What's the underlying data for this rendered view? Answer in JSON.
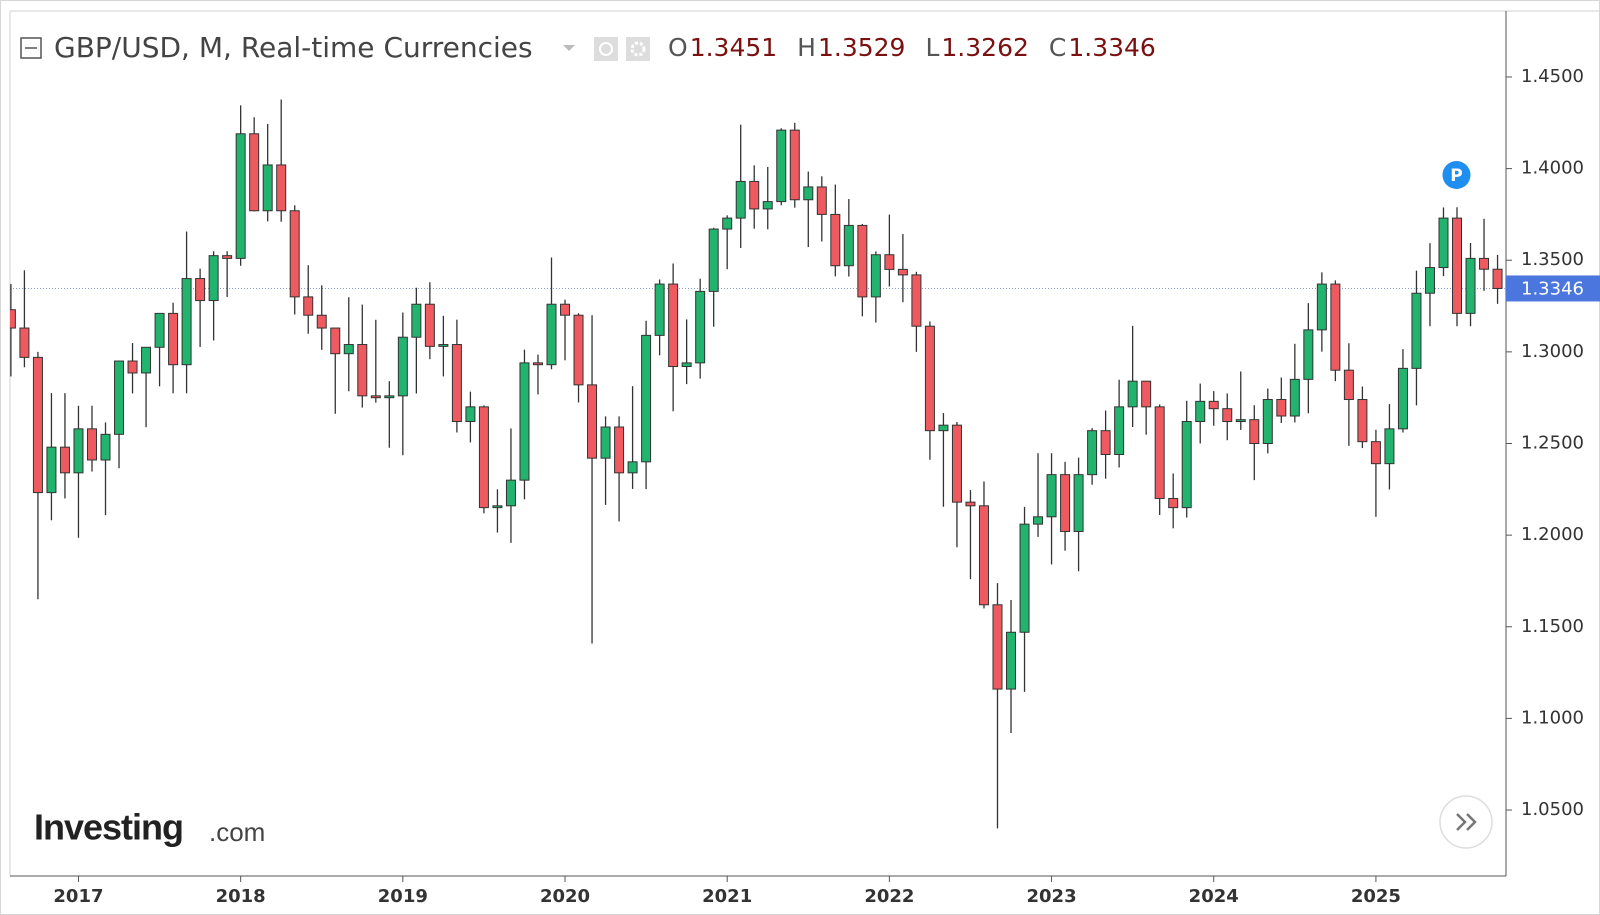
{
  "chart_data": {
    "type": "candlestick",
    "title": "GBP/USD, M, Real-time Currencies",
    "ohlc_letters": [
      "O",
      "H",
      "L",
      "C"
    ],
    "badge": "P",
    "brand": [
      "Investing",
      ".com"
    ],
    "up_color": "#22b46e",
    "down_color": "#ee5a5f",
    "x": [
      "2016-08",
      "2016-09",
      "2016-10",
      "2016-11",
      "2016-12",
      "2017-01",
      "2017-02",
      "2017-03",
      "2017-04",
      "2017-05",
      "2017-06",
      "2017-07",
      "2017-08",
      "2017-09",
      "2017-10",
      "2017-11",
      "2017-12",
      "2018-01",
      "2018-02",
      "2018-03",
      "2018-04",
      "2018-05",
      "2018-06",
      "2018-07",
      "2018-08",
      "2018-09",
      "2018-10",
      "2018-11",
      "2018-12",
      "2019-01",
      "2019-02",
      "2019-03",
      "2019-04",
      "2019-05",
      "2019-06",
      "2019-07",
      "2019-08",
      "2019-09",
      "2019-10",
      "2019-11",
      "2019-12",
      "2020-01",
      "2020-02",
      "2020-03",
      "2020-04",
      "2020-05",
      "2020-06",
      "2020-07",
      "2020-08",
      "2020-09",
      "2020-10",
      "2020-11",
      "2020-12",
      "2021-01",
      "2021-02",
      "2021-03",
      "2021-04",
      "2021-05",
      "2021-06",
      "2021-07",
      "2021-08",
      "2021-09",
      "2021-10",
      "2021-11",
      "2021-12",
      "2022-01",
      "2022-02",
      "2022-03",
      "2022-04",
      "2022-05",
      "2022-06",
      "2022-07",
      "2022-08",
      "2022-09",
      "2022-10",
      "2022-11",
      "2022-12",
      "2023-01",
      "2023-02",
      "2023-03",
      "2023-04",
      "2023-05",
      "2023-06",
      "2023-07",
      "2023-08",
      "2023-09",
      "2023-10",
      "2023-11",
      "2023-12",
      "2024-01",
      "2024-02",
      "2024-03",
      "2024-04",
      "2024-05",
      "2024-06",
      "2024-07",
      "2024-08",
      "2024-09",
      "2024-10",
      "2024-11",
      "2024-12",
      "2025-01",
      "2025-02",
      "2025-03",
      "2025-04",
      "2025-05",
      "2025-06",
      "2025-07",
      "2025-08",
      "2025-09",
      "2025-10"
    ],
    "open": [
      1.323,
      1.313,
      1.297,
      1.2232,
      1.248,
      1.234,
      1.258,
      1.241,
      1.255,
      1.295,
      1.2885,
      1.3025,
      1.321,
      1.293,
      1.34,
      1.328,
      1.3525,
      1.351,
      1.419,
      1.377,
      1.402,
      1.377,
      1.33,
      1.32,
      1.313,
      1.299,
      1.304,
      1.276,
      1.275,
      1.276,
      1.308,
      1.326,
      1.303,
      1.304,
      1.262,
      1.27,
      1.215,
      1.216,
      1.23,
      1.294,
      1.293,
      1.326,
      1.32,
      1.282,
      1.242,
      1.259,
      1.234,
      1.24,
      1.309,
      1.337,
      1.292,
      1.294,
      1.333,
      1.367,
      1.373,
      1.393,
      1.378,
      1.382,
      1.421,
      1.383,
      1.39,
      1.375,
      1.347,
      1.369,
      1.33,
      1.353,
      1.345,
      1.342,
      1.314,
      1.257,
      1.26,
      1.218,
      1.216,
      1.162,
      1.116,
      1.147,
      1.206,
      1.21,
      1.233,
      1.202,
      1.233,
      1.257,
      1.244,
      1.27,
      1.284,
      1.27,
      1.22,
      1.215,
      1.262,
      1.273,
      1.269,
      1.262,
      1.263,
      1.25,
      1.274,
      1.265,
      1.285,
      1.312,
      1.337,
      1.29,
      1.274,
      1.251,
      1.239,
      1.258,
      1.291,
      1.332,
      1.346,
      1.373,
      1.321,
      1.351,
      1.3451
    ],
    "high": [
      1.337,
      1.3445,
      1.3,
      1.2775,
      1.2775,
      1.2706,
      1.2706,
      1.2615,
      1.2905,
      1.3048,
      1.3013,
      1.3212,
      1.3268,
      1.3657,
      1.3454,
      1.3549,
      1.3549,
      1.4345,
      1.428,
      1.4244,
      1.4377,
      1.38,
      1.3473,
      1.3363,
      1.313,
      1.3298,
      1.3258,
      1.3175,
      1.284,
      1.3215,
      1.335,
      1.338,
      1.3197,
      1.3176,
      1.2783,
      1.2708,
      1.225,
      1.2582,
      1.3012,
      1.2985,
      1.3515,
      1.3285,
      1.3211,
      1.32,
      1.2648,
      1.2648,
      1.2813,
      1.317,
      1.3395,
      1.3482,
      1.3177,
      1.3399,
      1.3677,
      1.3745,
      1.424,
      1.4018,
      1.4009,
      1.422,
      1.425,
      1.3984,
      1.3958,
      1.3913,
      1.3834,
      1.3698,
      1.3548,
      1.3749,
      1.3643,
      1.3437,
      1.3166,
      1.2666,
      1.2617,
      1.2246,
      1.2293,
      1.1738,
      1.1646,
      1.2154,
      1.2447,
      1.2447,
      1.24,
      1.2423,
      1.2584,
      1.268,
      1.2848,
      1.3142,
      1.284,
      1.2713,
      1.2337,
      1.2733,
      1.2827,
      1.2786,
      1.2773,
      1.2893,
      1.2709,
      1.28,
      1.286,
      1.3044,
      1.3266,
      1.3434,
      1.339,
      1.3047,
      1.2811,
      1.2575,
      1.2715,
      1.3015,
      1.3443,
      1.3593,
      1.3788,
      1.3789,
      1.3594,
      1.3726,
      1.3529
    ],
    "low": [
      1.2866,
      1.2916,
      1.165,
      1.2081,
      1.22,
      1.1986,
      1.2347,
      1.2109,
      1.2365,
      1.2773,
      1.2589,
      1.2812,
      1.2774,
      1.2774,
      1.3027,
      1.3062,
      1.33,
      1.347,
      1.3766,
      1.3712,
      1.371,
      1.3204,
      1.3099,
      1.3011,
      1.2662,
      1.2785,
      1.2696,
      1.2723,
      1.2477,
      1.2436,
      1.2773,
      1.296,
      1.2866,
      1.256,
      1.2506,
      1.2119,
      1.2014,
      1.1958,
      1.2195,
      1.2768,
      1.2905,
      1.2954,
      1.2724,
      1.1409,
      1.2165,
      1.2075,
      1.2252,
      1.2251,
      1.2981,
      1.2676,
      1.2824,
      1.2854,
      1.3137,
      1.3451,
      1.3567,
      1.3672,
      1.3669,
      1.38,
      1.3787,
      1.3572,
      1.3602,
      1.3412,
      1.3411,
      1.3194,
      1.316,
      1.3357,
      1.3271,
      1.3,
      1.2411,
      1.2155,
      1.1934,
      1.176,
      1.16,
      1.04,
      1.092,
      1.1145,
      1.199,
      1.184,
      1.1915,
      1.1803,
      1.2275,
      1.2308,
      1.2369,
      1.259,
      1.2548,
      1.211,
      1.2037,
      1.2096,
      1.25,
      1.2597,
      1.2518,
      1.2574,
      1.23,
      1.2446,
      1.2612,
      1.2615,
      1.2665,
      1.3001,
      1.284,
      1.2487,
      1.2475,
      1.21,
      1.2249,
      1.256,
      1.2708,
      1.314,
      1.3413,
      1.314,
      1.314,
      1.3333,
      1.3262
    ],
    "close": [
      1.313,
      1.297,
      1.2232,
      1.248,
      1.234,
      1.258,
      1.241,
      1.255,
      1.295,
      1.2885,
      1.3025,
      1.321,
      1.293,
      1.34,
      1.328,
      1.3525,
      1.351,
      1.419,
      1.377,
      1.402,
      1.377,
      1.33,
      1.32,
      1.313,
      1.299,
      1.304,
      1.276,
      1.275,
      1.276,
      1.308,
      1.326,
      1.303,
      1.304,
      1.262,
      1.27,
      1.215,
      1.216,
      1.23,
      1.294,
      1.293,
      1.326,
      1.32,
      1.282,
      1.242,
      1.259,
      1.234,
      1.24,
      1.309,
      1.337,
      1.292,
      1.294,
      1.333,
      1.367,
      1.373,
      1.393,
      1.378,
      1.382,
      1.421,
      1.383,
      1.39,
      1.375,
      1.347,
      1.369,
      1.33,
      1.353,
      1.345,
      1.342,
      1.314,
      1.257,
      1.26,
      1.218,
      1.216,
      1.162,
      1.116,
      1.147,
      1.206,
      1.21,
      1.233,
      1.202,
      1.233,
      1.257,
      1.244,
      1.27,
      1.284,
      1.27,
      1.22,
      1.215,
      1.262,
      1.273,
      1.269,
      1.262,
      1.263,
      1.25,
      1.274,
      1.265,
      1.285,
      1.312,
      1.337,
      1.29,
      1.274,
      1.251,
      1.239,
      1.258,
      1.291,
      1.332,
      1.346,
      1.373,
      1.321,
      1.351,
      1.3451,
      1.3346
    ],
    "ylim": [
      1.014,
      1.486
    ],
    "yticks": [
      {
        "value": 1.05,
        "label": "1.0500"
      },
      {
        "value": 1.1,
        "label": "1.1000"
      },
      {
        "value": 1.15,
        "label": "1.1500"
      },
      {
        "value": 1.2,
        "label": "1.2000"
      },
      {
        "value": 1.25,
        "label": "1.2500"
      },
      {
        "value": 1.3,
        "label": "1.3000"
      },
      {
        "value": 1.35,
        "label": "1.3500"
      },
      {
        "value": 1.4,
        "label": "1.4000"
      },
      {
        "value": 1.45,
        "label": "1.4500"
      }
    ],
    "xticks": [
      {
        "value": "2017-01",
        "label": "2017"
      },
      {
        "value": "2018-01",
        "label": "2018"
      },
      {
        "value": "2019-01",
        "label": "2019"
      },
      {
        "value": "2020-01",
        "label": "2020"
      },
      {
        "value": "2021-01",
        "label": "2021"
      },
      {
        "value": "2022-01",
        "label": "2022"
      },
      {
        "value": "2023-01",
        "label": "2023"
      },
      {
        "value": "2024-01",
        "label": "2024"
      },
      {
        "value": "2025-01",
        "label": "2025"
      }
    ]
  }
}
